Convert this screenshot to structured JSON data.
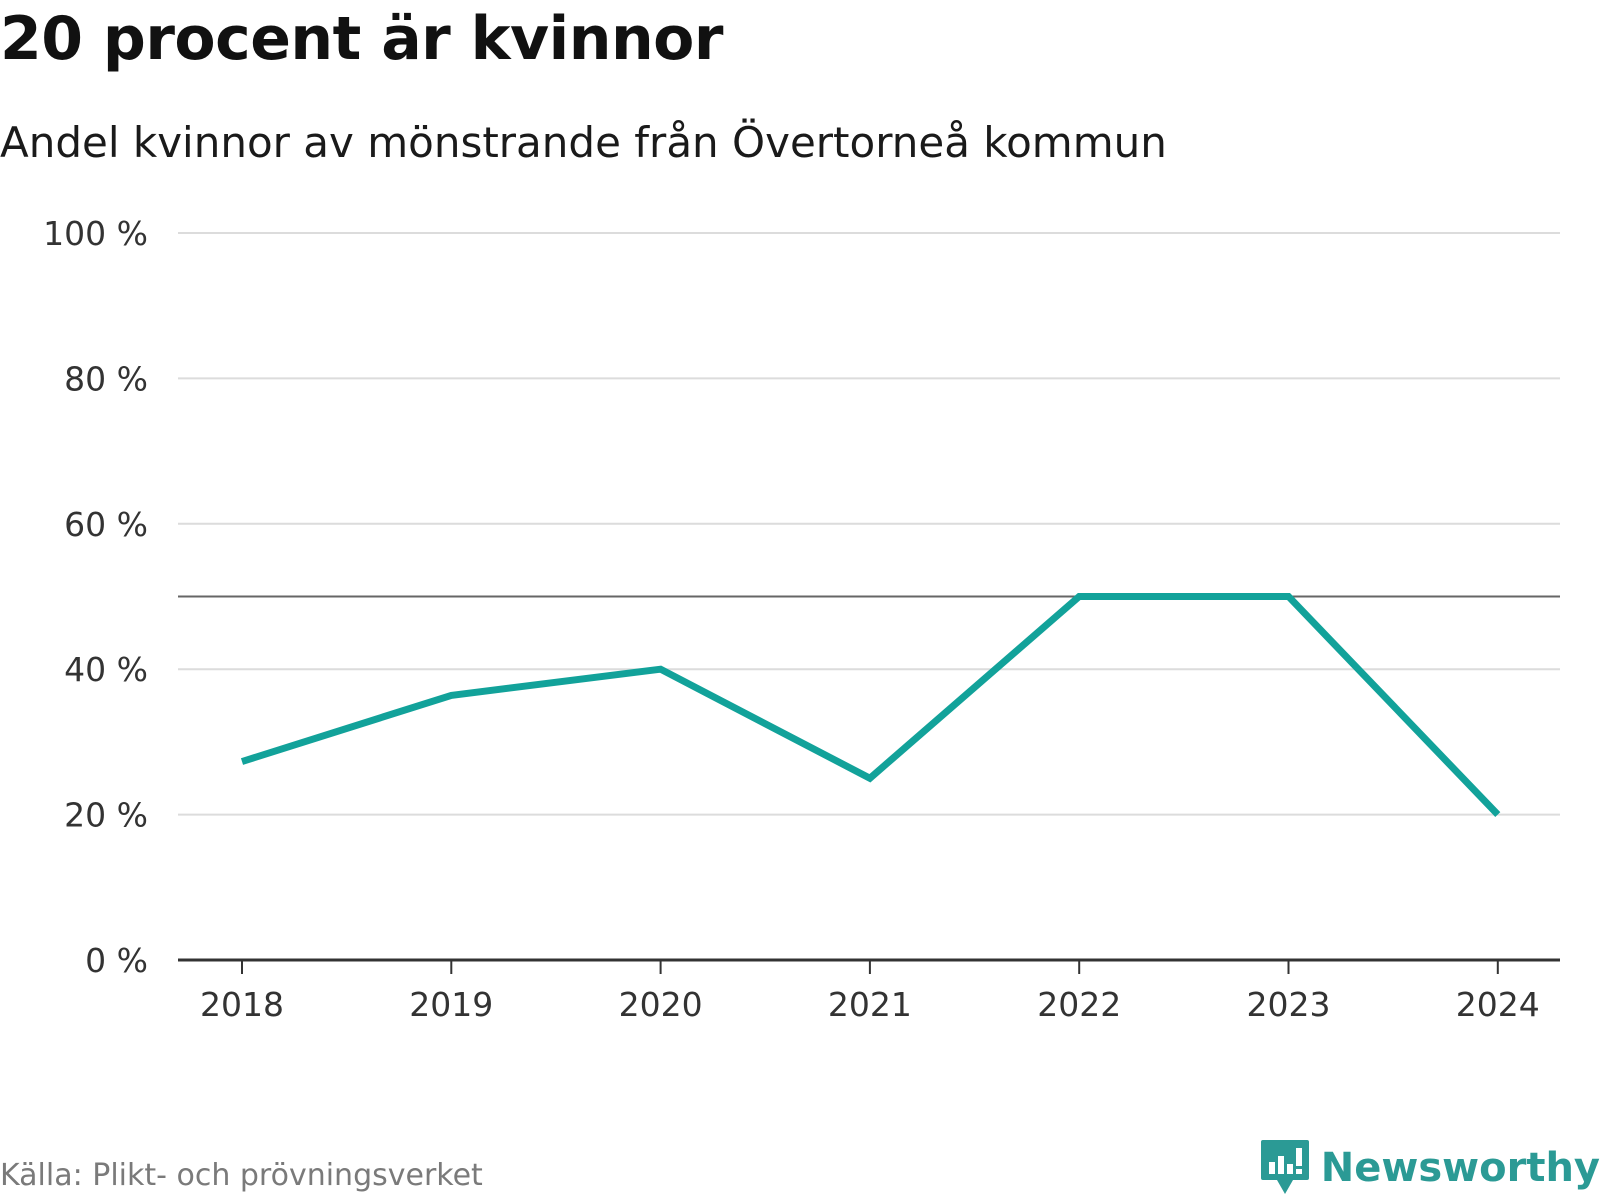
{
  "header": {
    "title": "20 procent är kvinnor",
    "subtitle": "Andel kvinnor av mönstrande från Övertorneå kommun"
  },
  "footer": {
    "source": "Källa: Plikt- och prövningsverket",
    "brand": "Newsworthy"
  },
  "colors": {
    "line": "#12a29a",
    "grid": "#dcdcdc",
    "reference": "#666666",
    "axis": "#333333",
    "brand": "#2b9a95"
  },
  "icons": {
    "brand_logo": "newsworthy-chart-bubble-icon"
  },
  "chart_data": {
    "type": "line",
    "categories": [
      "2018",
      "2019",
      "2020",
      "2021",
      "2022",
      "2023",
      "2024"
    ],
    "series": [
      {
        "values": [
          27.3,
          36.4,
          40,
          25,
          50,
          50,
          20
        ]
      }
    ],
    "ylim": [
      0,
      100
    ],
    "yticks": [
      0,
      20,
      40,
      60,
      80,
      100
    ],
    "ytick_labels": [
      "0 %",
      "20 %",
      "40 %",
      "60 %",
      "80 %",
      "100 %"
    ],
    "reference_line": 50,
    "grid": true,
    "legend": "none"
  }
}
